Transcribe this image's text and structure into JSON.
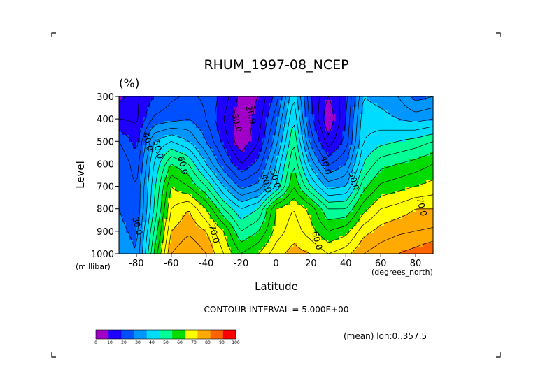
{
  "chart_data": {
    "type": "heatmap",
    "title": "RHUM_1997-08_NCEP",
    "units": "(%)",
    "xlabel": "Latitude",
    "ylabel": "Level",
    "x_unit_label": "(degrees_north)",
    "y_unit_label": "(millibar)",
    "xlim": [
      -90,
      90
    ],
    "ylim": [
      1000,
      300
    ],
    "x_ticks": [
      -80,
      -60,
      -40,
      -20,
      0,
      20,
      40,
      60,
      80
    ],
    "y_ticks": [
      300,
      400,
      500,
      600,
      700,
      800,
      900,
      1000
    ],
    "contour_interval_text": "CONTOUR INTERVAL = 5.000E+00",
    "average_note": "(mean) lon:0..357.5",
    "colorbar": {
      "levels": [
        0,
        10,
        20,
        30,
        40,
        50,
        60,
        70,
        80,
        90,
        100
      ],
      "colors": [
        "#a000c8",
        "#1e00ff",
        "#0050ff",
        "#0096ff",
        "#00dcff",
        "#00ff96",
        "#00dc00",
        "#ffff00",
        "#ffaa00",
        "#ff6400",
        "#ff0000"
      ]
    },
    "grid": {
      "x": [
        -90,
        -80,
        -70,
        -60,
        -50,
        -40,
        -30,
        -20,
        -10,
        0,
        10,
        20,
        30,
        40,
        50,
        60,
        70,
        80,
        90
      ],
      "levels": [
        300,
        400,
        500,
        600,
        700,
        800,
        900,
        1000
      ],
      "z": [
        [
          8,
          14,
          20,
          24,
          26,
          24,
          18,
          8,
          10,
          22,
          45,
          20,
          10,
          18,
          40,
          38,
          35,
          28,
          30
        ],
        [
          15,
          14,
          26,
          28,
          30,
          25,
          15,
          6,
          12,
          28,
          50,
          22,
          5,
          20,
          43,
          42,
          40,
          38,
          40
        ],
        [
          25,
          18,
          40,
          45,
          40,
          30,
          18,
          5,
          15,
          33,
          55,
          28,
          12,
          22,
          45,
          48,
          50,
          52,
          55
        ],
        [
          30,
          22,
          45,
          60,
          55,
          40,
          26,
          15,
          22,
          40,
          60,
          38,
          24,
          30,
          50,
          58,
          60,
          62,
          65
        ],
        [
          30,
          25,
          48,
          70,
          65,
          55,
          40,
          28,
          32,
          45,
          65,
          50,
          38,
          40,
          58,
          66,
          68,
          70,
          72
        ],
        [
          30,
          25,
          50,
          75,
          80,
          70,
          55,
          45,
          50,
          70,
          75,
          68,
          55,
          55,
          68,
          75,
          77,
          80,
          80
        ],
        [
          32,
          28,
          55,
          80,
          84,
          80,
          70,
          55,
          60,
          72,
          78,
          72,
          65,
          68,
          78,
          82,
          84,
          85,
          86
        ],
        [
          35,
          30,
          60,
          85,
          90,
          85,
          75,
          65,
          70,
          78,
          82,
          80,
          75,
          78,
          85,
          88,
          90,
          92,
          95
        ]
      ]
    },
    "contour_labels": [
      {
        "text": "40.0",
        "lat": -75,
        "lev": 505
      },
      {
        "text": "50.0",
        "lat": -69,
        "lev": 540
      },
      {
        "text": "60.0",
        "lat": -55,
        "lev": 610
      },
      {
        "text": "30.0",
        "lat": -24,
        "lev": 420
      },
      {
        "text": "20.0",
        "lat": -16,
        "lev": 385
      },
      {
        "text": "40.0",
        "lat": -7,
        "lev": 690
      },
      {
        "text": "50.0",
        "lat": -2,
        "lev": 670
      },
      {
        "text": "40.0",
        "lat": 27,
        "lev": 610
      },
      {
        "text": "50.0",
        "lat": 43,
        "lev": 680
      },
      {
        "text": "70.0",
        "lat": 82,
        "lev": 795
      },
      {
        "text": "30.0",
        "lat": -81,
        "lev": 880
      },
      {
        "text": "70.0",
        "lat": -37,
        "lev": 915
      },
      {
        "text": "60.0",
        "lat": 22,
        "lev": 945
      }
    ]
  }
}
